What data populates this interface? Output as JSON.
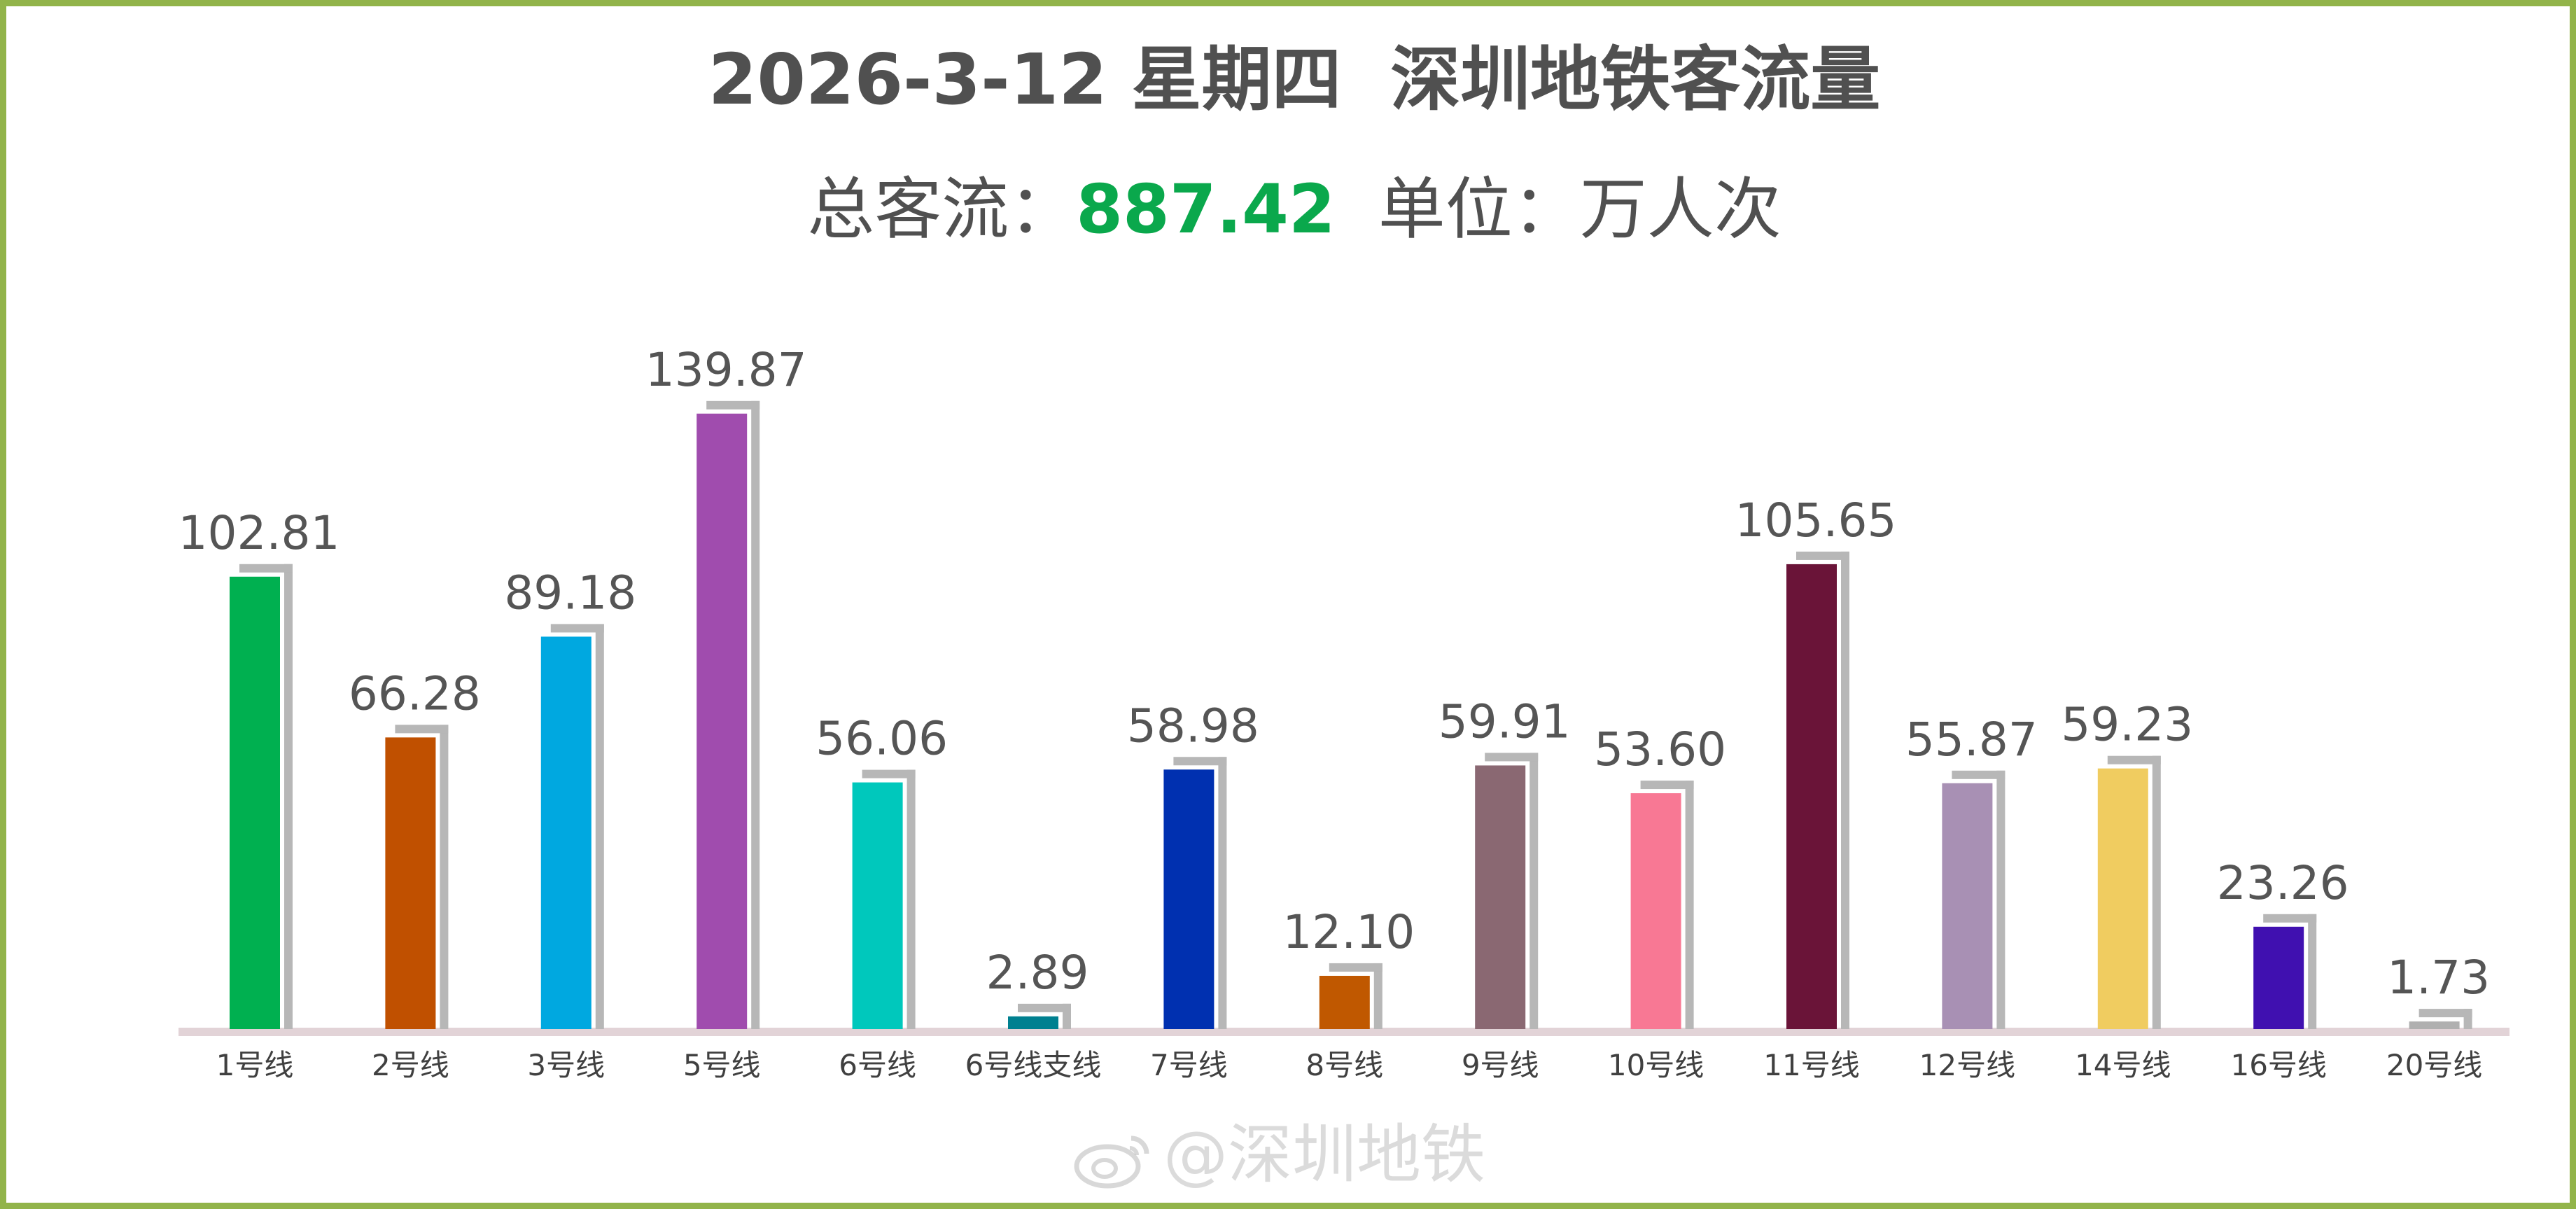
{
  "title": "2026-3-12 星期四  深圳地铁客流量",
  "subtitle": {
    "total_label": "总客流：",
    "total_value": "887.42",
    "unit_label": "  单位：万人次"
  },
  "watermark": "@深圳地铁",
  "colors": {
    "frame": "#92b44a",
    "total_value": "#0aa84c",
    "bar_shadow": "#b7b7b7",
    "baseline": "#e2d3d7"
  },
  "chart_data": {
    "type": "bar",
    "categories": [
      "1号线",
      "2号线",
      "3号线",
      "5号线",
      "6号线",
      "6号线支线",
      "7号线",
      "8号线",
      "9号线",
      "10号线",
      "11号线",
      "12号线",
      "14号线",
      "16号线",
      "20号线"
    ],
    "values": [
      102.81,
      66.28,
      89.18,
      139.87,
      56.06,
      2.89,
      58.98,
      12.1,
      59.91,
      53.6,
      105.65,
      55.87,
      59.23,
      23.26,
      1.73
    ],
    "value_labels": [
      "102.81",
      "66.28",
      "89.18",
      "139.87",
      "56.06",
      "2.89",
      "58.98",
      "12.10",
      "59.91",
      "53.60",
      "105.65",
      "55.87",
      "59.23",
      "23.26",
      "1.73"
    ],
    "bar_colors": [
      "#00b050",
      "#c05000",
      "#00a8e0",
      "#a04cae",
      "#00c8bc",
      "#008090",
      "#0030b0",
      "#c05800",
      "#8a6872",
      "#f87894",
      "#6a1438",
      "#a890b4",
      "#f0cc60",
      "#4010b0",
      "#b0b0b0"
    ],
    "ylim": [
      0,
      140
    ],
    "grid": false,
    "legend": "none"
  }
}
